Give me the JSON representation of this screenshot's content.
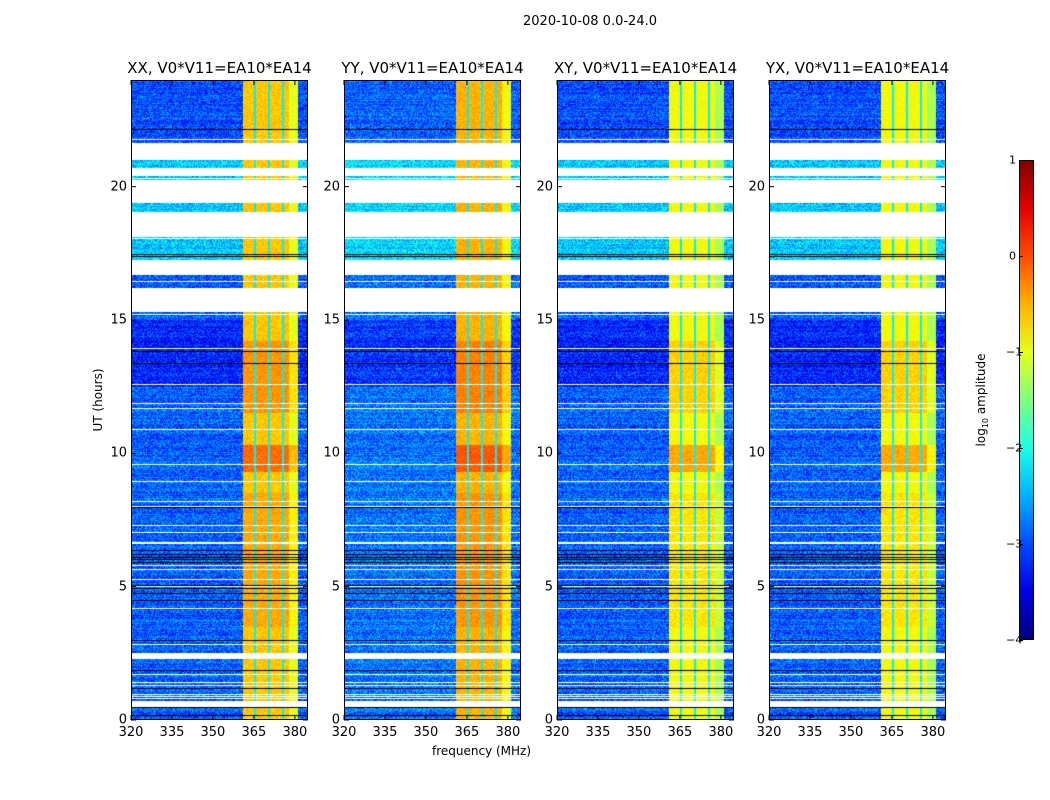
{
  "chart_data": {
    "type": "heatmap",
    "title": "2020-10-08 0.0-24.0",
    "xlabel": "frequency (MHz)",
    "ylabel": "UT (hours)",
    "xlim": [
      320,
      384.8
    ],
    "ylim": [
      0,
      24
    ],
    "xticks": [
      320,
      335,
      350,
      365,
      380
    ],
    "yticks": [
      0,
      5,
      10,
      15,
      20
    ],
    "panels": [
      {
        "title": "XX, V0*V11=EA10*EA14",
        "band_level": -0.6,
        "background_level": -2.9
      },
      {
        "title": "YY, V0*V11=EA10*EA14",
        "band_level": -0.5,
        "background_level": -2.8
      },
      {
        "title": "XY, V0*V11=EA10*EA14",
        "band_level": -0.9,
        "background_level": -2.9
      },
      {
        "title": "YX, V0*V11=EA10*EA14",
        "band_level": -0.9,
        "background_level": -2.9
      }
    ],
    "bright_band_mhz": [
      361,
      381
    ],
    "band_gaps_mhz": [
      365.5,
      370.6,
      375.7
    ],
    "flagged_hours": [
      [
        21.0,
        21.6
      ],
      [
        20.4,
        20.7
      ],
      [
        19.4,
        20.25
      ],
      [
        18.1,
        19.05
      ],
      [
        16.7,
        17.25
      ],
      [
        15.3,
        16.2
      ],
      [
        2.3,
        2.5
      ],
      [
        0.5,
        0.7
      ]
    ],
    "colorbar": {
      "label_main": "log",
      "label_sub": "10",
      "label_rest": " amplitude",
      "range": [
        -4,
        1
      ],
      "ticks": [
        "1",
        "0",
        "−1",
        "−2",
        "−3",
        "−4"
      ],
      "colormap": "jet"
    }
  }
}
